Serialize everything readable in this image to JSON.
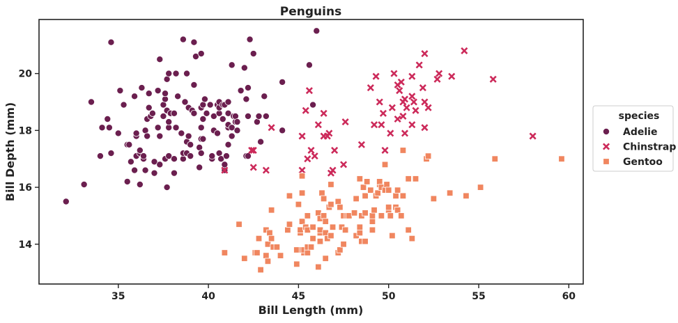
{
  "chart_data": {
    "type": "scatter",
    "title": "Penguins",
    "xlabel": "Bill Length (mm)",
    "ylabel": "Bill Depth (mm)",
    "xlim": [
      30.6,
      60.8
    ],
    "ylim": [
      12.6,
      21.9
    ],
    "xticks": [
      35,
      40,
      45,
      50,
      55,
      60
    ],
    "yticks": [
      14,
      16,
      18,
      20
    ],
    "grid": false,
    "legend": {
      "title": "species",
      "placement": "right, outside plot"
    },
    "series": [
      {
        "name": "Adelie",
        "marker": "circle",
        "color": "#6b1f4f",
        "points": [
          [
            32.1,
            15.5
          ],
          [
            33.1,
            16.1
          ],
          [
            33.5,
            19.0
          ],
          [
            34.0,
            17.1
          ],
          [
            34.1,
            18.1
          ],
          [
            34.4,
            18.4
          ],
          [
            34.5,
            18.1
          ],
          [
            34.6,
            17.2
          ],
          [
            34.6,
            21.1
          ],
          [
            35.0,
            17.9
          ],
          [
            35.1,
            19.4
          ],
          [
            35.3,
            18.9
          ],
          [
            35.5,
            16.2
          ],
          [
            35.5,
            17.5
          ],
          [
            35.6,
            17.5
          ],
          [
            35.7,
            16.9
          ],
          [
            35.9,
            16.6
          ],
          [
            35.9,
            19.2
          ],
          [
            36.0,
            17.1
          ],
          [
            36.0,
            17.8
          ],
          [
            36.0,
            17.9
          ],
          [
            36.2,
            16.1
          ],
          [
            36.2,
            17.2
          ],
          [
            36.2,
            17.3
          ],
          [
            36.3,
            19.5
          ],
          [
            36.4,
            17.0
          ],
          [
            36.4,
            17.1
          ],
          [
            36.5,
            16.6
          ],
          [
            36.5,
            18.0
          ],
          [
            36.6,
            17.8
          ],
          [
            36.6,
            18.4
          ],
          [
            36.7,
            18.8
          ],
          [
            36.7,
            19.3
          ],
          [
            36.8,
            18.5
          ],
          [
            36.9,
            18.6
          ],
          [
            37.0,
            16.5
          ],
          [
            37.0,
            16.9
          ],
          [
            37.2,
            18.1
          ],
          [
            37.2,
            19.4
          ],
          [
            37.3,
            16.8
          ],
          [
            37.3,
            17.8
          ],
          [
            37.3,
            20.5
          ],
          [
            37.5,
            18.5
          ],
          [
            37.5,
            18.9
          ],
          [
            37.6,
            17.0
          ],
          [
            37.6,
            19.1
          ],
          [
            37.6,
            19.3
          ],
          [
            37.7,
            16.0
          ],
          [
            37.7,
            18.7
          ],
          [
            37.7,
            19.8
          ],
          [
            37.8,
            17.1
          ],
          [
            37.8,
            18.1
          ],
          [
            37.8,
            18.3
          ],
          [
            37.8,
            20.0
          ],
          [
            37.9,
            18.6
          ],
          [
            38.1,
            16.5
          ],
          [
            38.1,
            17.0
          ],
          [
            38.1,
            18.6
          ],
          [
            38.2,
            18.1
          ],
          [
            38.2,
            20.0
          ],
          [
            38.3,
            19.2
          ],
          [
            38.5,
            17.9
          ],
          [
            38.6,
            17.0
          ],
          [
            38.6,
            17.2
          ],
          [
            38.6,
            21.2
          ],
          [
            38.7,
            19.0
          ],
          [
            38.8,
            17.2
          ],
          [
            38.8,
            17.6
          ],
          [
            38.8,
            20.0
          ],
          [
            38.9,
            17.8
          ],
          [
            38.9,
            18.8
          ],
          [
            39.0,
            17.1
          ],
          [
            39.0,
            17.5
          ],
          [
            39.1,
            18.7
          ],
          [
            39.2,
            18.6
          ],
          [
            39.2,
            19.6
          ],
          [
            39.2,
            21.1
          ],
          [
            39.3,
            20.6
          ],
          [
            39.5,
            16.7
          ],
          [
            39.5,
            17.4
          ],
          [
            39.6,
            17.2
          ],
          [
            39.6,
            17.7
          ],
          [
            39.6,
            18.1
          ],
          [
            39.6,
            18.8
          ],
          [
            39.6,
            20.7
          ],
          [
            39.7,
            17.7
          ],
          [
            39.7,
            18.4
          ],
          [
            39.7,
            18.9
          ],
          [
            39.8,
            19.1
          ],
          [
            39.9,
            18.6
          ],
          [
            40.1,
            18.9
          ],
          [
            40.2,
            17.0
          ],
          [
            40.2,
            17.1
          ],
          [
            40.3,
            18.0
          ],
          [
            40.3,
            18.5
          ],
          [
            40.5,
            17.9
          ],
          [
            40.5,
            18.9
          ],
          [
            40.6,
            17.2
          ],
          [
            40.6,
            18.6
          ],
          [
            40.6,
            18.8
          ],
          [
            40.6,
            19.0
          ],
          [
            40.7,
            17.0
          ],
          [
            40.8,
            18.4
          ],
          [
            40.8,
            18.9
          ],
          [
            40.9,
            16.6
          ],
          [
            40.9,
            16.8
          ],
          [
            40.9,
            18.9
          ],
          [
            41.0,
            17.1
          ],
          [
            41.1,
            17.5
          ],
          [
            41.1,
            18.1
          ],
          [
            41.1,
            18.2
          ],
          [
            41.1,
            18.6
          ],
          [
            41.1,
            19.0
          ],
          [
            41.3,
            17.8
          ],
          [
            41.3,
            18.1
          ],
          [
            41.3,
            20.3
          ],
          [
            41.4,
            18.5
          ],
          [
            41.5,
            18.3
          ],
          [
            41.5,
            18.5
          ],
          [
            41.6,
            18.0
          ],
          [
            41.6,
            18.3
          ],
          [
            41.8,
            19.4
          ],
          [
            42.0,
            20.2
          ],
          [
            42.1,
            17.1
          ],
          [
            42.1,
            19.1
          ],
          [
            42.2,
            17.1
          ],
          [
            42.2,
            18.5
          ],
          [
            42.2,
            19.5
          ],
          [
            42.3,
            21.2
          ],
          [
            42.5,
            20.7
          ],
          [
            42.7,
            18.3
          ],
          [
            42.8,
            18.5
          ],
          [
            42.9,
            17.6
          ],
          [
            43.1,
            19.2
          ],
          [
            43.2,
            18.5
          ],
          [
            44.1,
            18.0
          ],
          [
            44.1,
            19.7
          ],
          [
            45.6,
            20.3
          ],
          [
            45.8,
            18.9
          ],
          [
            46.0,
            21.5
          ]
        ]
      },
      {
        "name": "Chinstrap",
        "marker": "x",
        "color": "#cc2a5a",
        "points": [
          [
            40.9,
            16.6
          ],
          [
            42.4,
            17.3
          ],
          [
            42.5,
            16.7
          ],
          [
            42.5,
            17.3
          ],
          [
            43.2,
            16.6
          ],
          [
            43.5,
            18.1
          ],
          [
            45.2,
            16.6
          ],
          [
            45.2,
            17.8
          ],
          [
            45.4,
            18.7
          ],
          [
            45.5,
            17.0
          ],
          [
            45.6,
            19.4
          ],
          [
            45.7,
            17.3
          ],
          [
            45.9,
            17.1
          ],
          [
            46.1,
            18.2
          ],
          [
            46.4,
            17.8
          ],
          [
            46.4,
            18.6
          ],
          [
            46.6,
            17.8
          ],
          [
            46.7,
            17.9
          ],
          [
            46.8,
            16.5
          ],
          [
            46.9,
            16.6
          ],
          [
            47.0,
            17.3
          ],
          [
            47.5,
            16.8
          ],
          [
            47.6,
            18.3
          ],
          [
            48.5,
            17.5
          ],
          [
            49.0,
            19.5
          ],
          [
            49.2,
            18.2
          ],
          [
            49.3,
            19.9
          ],
          [
            49.5,
            19.0
          ],
          [
            49.6,
            18.2
          ],
          [
            49.7,
            18.6
          ],
          [
            49.8,
            17.3
          ],
          [
            50.1,
            17.9
          ],
          [
            50.2,
            18.8
          ],
          [
            50.3,
            20.0
          ],
          [
            50.5,
            18.4
          ],
          [
            50.5,
            19.6
          ],
          [
            50.6,
            19.4
          ],
          [
            50.7,
            19.7
          ],
          [
            50.8,
            18.5
          ],
          [
            50.8,
            19.0
          ],
          [
            50.9,
            17.9
          ],
          [
            50.9,
            19.1
          ],
          [
            51.0,
            18.8
          ],
          [
            51.3,
            18.2
          ],
          [
            51.3,
            19.2
          ],
          [
            51.3,
            19.9
          ],
          [
            51.4,
            19.0
          ],
          [
            51.5,
            18.7
          ],
          [
            51.7,
            20.3
          ],
          [
            51.9,
            19.5
          ],
          [
            52.0,
            18.1
          ],
          [
            52.0,
            19.0
          ],
          [
            52.0,
            20.7
          ],
          [
            52.2,
            18.8
          ],
          [
            52.7,
            19.8
          ],
          [
            52.8,
            20.0
          ],
          [
            53.5,
            19.9
          ],
          [
            54.2,
            20.8
          ],
          [
            55.8,
            19.8
          ],
          [
            58.0,
            17.8
          ]
        ]
      },
      {
        "name": "Gentoo",
        "marker": "square",
        "color": "#f0865f",
        "points": [
          [
            40.9,
            13.7
          ],
          [
            41.7,
            14.7
          ],
          [
            42.0,
            13.5
          ],
          [
            42.6,
            13.7
          ],
          [
            42.7,
            13.7
          ],
          [
            42.8,
            14.2
          ],
          [
            42.9,
            13.1
          ],
          [
            43.2,
            13.6
          ],
          [
            43.2,
            14.5
          ],
          [
            43.3,
            13.4
          ],
          [
            43.3,
            14.0
          ],
          [
            43.4,
            14.4
          ],
          [
            43.5,
            14.2
          ],
          [
            43.5,
            15.2
          ],
          [
            43.6,
            13.9
          ],
          [
            43.8,
            13.9
          ],
          [
            44.0,
            13.6
          ],
          [
            44.4,
            14.5
          ],
          [
            44.5,
            14.7
          ],
          [
            44.5,
            15.7
          ],
          [
            44.9,
            13.3
          ],
          [
            44.9,
            13.8
          ],
          [
            45.0,
            15.4
          ],
          [
            45.1,
            14.4
          ],
          [
            45.1,
            14.5
          ],
          [
            45.2,
            13.8
          ],
          [
            45.2,
            14.8
          ],
          [
            45.2,
            15.8
          ],
          [
            45.2,
            16.4
          ],
          [
            45.3,
            13.7
          ],
          [
            45.3,
            13.8
          ],
          [
            45.4,
            14.6
          ],
          [
            45.5,
            13.7
          ],
          [
            45.5,
            13.9
          ],
          [
            45.5,
            14.5
          ],
          [
            45.5,
            15.0
          ],
          [
            45.7,
            13.9
          ],
          [
            45.8,
            14.2
          ],
          [
            45.8,
            14.6
          ],
          [
            46.1,
            13.2
          ],
          [
            46.1,
            15.1
          ],
          [
            46.2,
            14.1
          ],
          [
            46.2,
            14.4
          ],
          [
            46.2,
            14.5
          ],
          [
            46.2,
            14.9
          ],
          [
            46.3,
            15.8
          ],
          [
            46.4,
            15.0
          ],
          [
            46.4,
            15.6
          ],
          [
            46.5,
            13.5
          ],
          [
            46.5,
            14.4
          ],
          [
            46.5,
            14.8
          ],
          [
            46.6,
            14.2
          ],
          [
            46.7,
            15.3
          ],
          [
            46.8,
            14.3
          ],
          [
            46.8,
            15.4
          ],
          [
            46.8,
            16.1
          ],
          [
            46.9,
            14.6
          ],
          [
            47.2,
            13.7
          ],
          [
            47.2,
            15.5
          ],
          [
            47.3,
            13.8
          ],
          [
            47.3,
            15.3
          ],
          [
            47.4,
            14.6
          ],
          [
            47.5,
            14.0
          ],
          [
            47.5,
            15.0
          ],
          [
            47.6,
            14.5
          ],
          [
            47.7,
            15.0
          ],
          [
            47.8,
            15.0
          ],
          [
            48.1,
            15.1
          ],
          [
            48.2,
            14.3
          ],
          [
            48.2,
            15.6
          ],
          [
            48.4,
            14.4
          ],
          [
            48.4,
            14.6
          ],
          [
            48.4,
            16.3
          ],
          [
            48.5,
            14.1
          ],
          [
            48.5,
            15.0
          ],
          [
            48.6,
            16.0
          ],
          [
            48.7,
            14.1
          ],
          [
            48.7,
            15.1
          ],
          [
            48.7,
            15.7
          ],
          [
            48.8,
            16.2
          ],
          [
            49.0,
            15.9
          ],
          [
            49.1,
            14.5
          ],
          [
            49.1,
            14.8
          ],
          [
            49.1,
            15.0
          ],
          [
            49.2,
            15.2
          ],
          [
            49.3,
            15.7
          ],
          [
            49.4,
            15.8
          ],
          [
            49.5,
            16.1
          ],
          [
            49.5,
            16.2
          ],
          [
            49.6,
            15.0
          ],
          [
            49.6,
            16.0
          ],
          [
            49.8,
            15.9
          ],
          [
            49.8,
            16.8
          ],
          [
            49.9,
            16.1
          ],
          [
            50.0,
            15.2
          ],
          [
            50.0,
            15.3
          ],
          [
            50.0,
            15.9
          ],
          [
            50.1,
            15.0
          ],
          [
            50.2,
            14.3
          ],
          [
            50.4,
            15.3
          ],
          [
            50.4,
            15.7
          ],
          [
            50.5,
            15.2
          ],
          [
            50.5,
            15.9
          ],
          [
            50.7,
            15.0
          ],
          [
            50.8,
            15.7
          ],
          [
            50.8,
            17.3
          ],
          [
            51.1,
            14.5
          ],
          [
            51.1,
            16.3
          ],
          [
            51.3,
            14.2
          ],
          [
            51.5,
            16.3
          ],
          [
            52.1,
            17.0
          ],
          [
            52.2,
            17.1
          ],
          [
            52.5,
            15.6
          ],
          [
            53.4,
            15.8
          ],
          [
            54.3,
            15.7
          ],
          [
            55.1,
            16.0
          ],
          [
            55.9,
            17.0
          ],
          [
            59.6,
            17.0
          ]
        ]
      }
    ]
  }
}
